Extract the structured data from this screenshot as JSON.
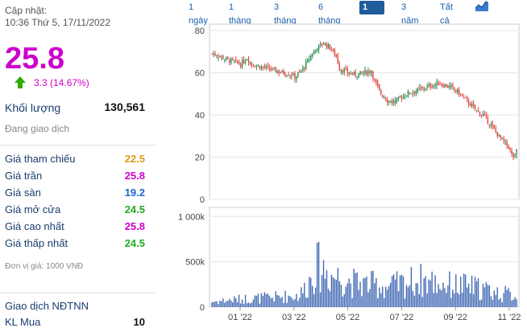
{
  "update": {
    "label": "Cập nhật:",
    "datetime": "10:36 Thứ 5, 17/11/2022"
  },
  "price": "25.8",
  "change": "3.3 (14.67%)",
  "volume": {
    "label": "Khối lượng",
    "value": "130,561"
  },
  "status": "Đang giao dịch",
  "rows": [
    {
      "label": "Giá tham chiếu",
      "value": "22.5",
      "color": "#e39a1c"
    },
    {
      "label": "Giá trần",
      "value": "25.8",
      "color": "#cc00cc"
    },
    {
      "label": "Giá sàn",
      "value": "19.2",
      "color": "#1a66cc"
    },
    {
      "label": "Giá mở cửa",
      "value": "24.5",
      "color": "#22aa22"
    },
    {
      "label": "Giá cao nhất",
      "value": "25.8",
      "color": "#cc00cc"
    },
    {
      "label": "Giá thấp nhất",
      "value": "24.5",
      "color": "#22aa22"
    }
  ],
  "unit_note": "Đơn vị giá: 1000 VNĐ",
  "foreign": {
    "title": "Giao dịch NĐTNN",
    "buy_label": "KL Mua",
    "buy_value": "10"
  },
  "tabs": [
    "1 ngày",
    "1 tháng",
    "3 tháng",
    "6 tháng",
    "1 năm",
    "3 năm",
    "Tất cả"
  ],
  "active_tab": "1 năm",
  "chart_icon": "area-chart-icon",
  "chart_data": {
    "type": "candlestick",
    "price_axis": {
      "ticks": [
        0,
        20,
        40,
        60,
        80
      ],
      "range": [
        0,
        80
      ]
    },
    "volume_axis": {
      "ticks": [
        0,
        500000,
        1000000
      ],
      "tick_labels": [
        "0",
        "500k",
        "1 000k"
      ],
      "range": [
        0,
        1100000
      ]
    },
    "x_ticks": [
      "01 '22",
      "03 '22",
      "05 '22",
      "07 '22",
      "09 '22",
      "11 '22"
    ],
    "up_color": "#2e8b57",
    "down_color": "#e0443c",
    "volume_color": "#4169b4",
    "price_keypoints": [
      [
        0,
        69
      ],
      [
        5,
        68
      ],
      [
        10,
        66
      ],
      [
        15,
        65
      ],
      [
        18,
        64
      ],
      [
        22,
        67
      ],
      [
        25,
        64
      ],
      [
        30,
        63
      ],
      [
        35,
        62
      ],
      [
        40,
        61
      ],
      [
        45,
        60
      ],
      [
        50,
        59
      ],
      [
        52,
        58
      ],
      [
        55,
        60
      ],
      [
        58,
        63
      ],
      [
        62,
        68
      ],
      [
        66,
        72
      ],
      [
        70,
        74
      ],
      [
        74,
        72
      ],
      [
        78,
        68
      ],
      [
        80,
        62
      ],
      [
        85,
        60
      ],
      [
        90,
        59
      ],
      [
        95,
        60
      ],
      [
        100,
        61
      ],
      [
        102,
        56
      ],
      [
        106,
        50
      ],
      [
        110,
        47
      ],
      [
        114,
        46
      ],
      [
        118,
        48
      ],
      [
        122,
        50
      ],
      [
        126,
        51
      ],
      [
        130,
        52
      ],
      [
        134,
        53
      ],
      [
        138,
        54
      ],
      [
        142,
        55
      ],
      [
        146,
        54
      ],
      [
        150,
        53
      ],
      [
        154,
        51
      ],
      [
        158,
        48
      ],
      [
        162,
        45
      ],
      [
        166,
        42
      ],
      [
        170,
        40
      ],
      [
        174,
        36
      ],
      [
        178,
        32
      ],
      [
        182,
        28
      ],
      [
        186,
        25
      ],
      [
        188,
        21
      ],
      [
        190,
        20
      ],
      [
        192,
        25.8
      ]
    ],
    "volume_keypoints": [
      [
        0,
        60000
      ],
      [
        20,
        90000
      ],
      [
        40,
        110000
      ],
      [
        55,
        130000
      ],
      [
        60,
        250000
      ],
      [
        65,
        450000
      ],
      [
        70,
        420000
      ],
      [
        75,
        350000
      ],
      [
        80,
        330000
      ],
      [
        90,
        260000
      ],
      [
        100,
        250000
      ],
      [
        110,
        220000
      ],
      [
        120,
        260000
      ],
      [
        130,
        300000
      ],
      [
        140,
        270000
      ],
      [
        150,
        240000
      ],
      [
        160,
        230000
      ],
      [
        170,
        200000
      ],
      [
        180,
        150000
      ],
      [
        192,
        130561
      ]
    ]
  }
}
